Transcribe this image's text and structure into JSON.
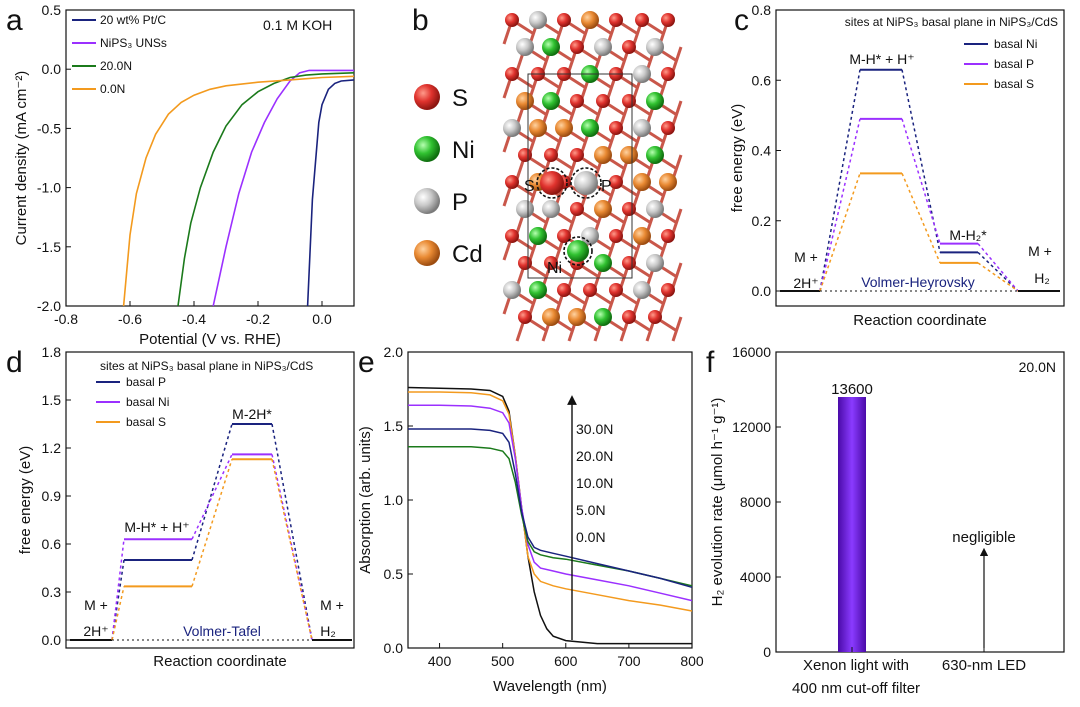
{
  "chart_data": [
    {
      "panel": "a",
      "type": "line",
      "title": "",
      "annotation": "0.1 M KOH",
      "xlabel": "Potential (V vs. RHE)",
      "ylabel": "Current density (mA cm⁻²)",
      "xlim": [
        -0.8,
        0.1
      ],
      "ylim": [
        -2.0,
        0.5
      ],
      "xticks": [
        "-0.8",
        "-0.6",
        "-0.4",
        "-0.2",
        "0.0"
      ],
      "yticks": [
        "-2.0",
        "-1.5",
        "-1.0",
        "-0.5",
        "0.0",
        "0.5"
      ],
      "legend": "top-left",
      "series": [
        {
          "name": "20 wt% Pt/C",
          "color": "#1a237e",
          "x": [
            -0.045,
            -0.03,
            -0.01,
            0.0,
            0.02,
            0.04,
            0.06,
            0.1
          ],
          "y": [
            -2.0,
            -1.1,
            -0.45,
            -0.3,
            -0.17,
            -0.12,
            -0.1,
            -0.09
          ]
        },
        {
          "name": "NiPS₃ UNSs",
          "color": "#9b30ff",
          "x": [
            -0.34,
            -0.32,
            -0.3,
            -0.26,
            -0.22,
            -0.18,
            -0.14,
            -0.1,
            -0.07,
            -0.04,
            0.0,
            0.1
          ],
          "y": [
            -2.0,
            -1.75,
            -1.5,
            -1.05,
            -0.7,
            -0.45,
            -0.25,
            -0.1,
            -0.03,
            -0.01,
            -0.01,
            -0.01
          ]
        },
        {
          "name": "20.0N",
          "color": "#1b7a1b",
          "x": [
            -0.45,
            -0.43,
            -0.41,
            -0.38,
            -0.34,
            -0.3,
            -0.25,
            -0.2,
            -0.15,
            -0.1,
            -0.05,
            0.0,
            0.1
          ],
          "y": [
            -2.0,
            -1.6,
            -1.3,
            -1.0,
            -0.7,
            -0.48,
            -0.3,
            -0.19,
            -0.12,
            -0.07,
            -0.05,
            -0.04,
            -0.03
          ]
        },
        {
          "name": "0.0N",
          "color": "#f39a1e",
          "x": [
            -0.62,
            -0.61,
            -0.6,
            -0.58,
            -0.55,
            -0.52,
            -0.48,
            -0.44,
            -0.4,
            -0.35,
            -0.3,
            -0.2,
            -0.1,
            0.0,
            0.1
          ],
          "y": [
            -2.0,
            -1.7,
            -1.4,
            -1.05,
            -0.75,
            -0.55,
            -0.38,
            -0.28,
            -0.22,
            -0.17,
            -0.14,
            -0.11,
            -0.09,
            -0.07,
            -0.06
          ]
        }
      ]
    },
    {
      "panel": "b",
      "type": "structure",
      "legend": [
        "S",
        "Ni",
        "P",
        "Cd"
      ],
      "colors": {
        "S": "#e0332e",
        "Ni": "#31c231",
        "P": "#bdbdbd",
        "Cd": "#e98a33"
      },
      "site_labels": [
        "S",
        "P",
        "Ni"
      ]
    },
    {
      "panel": "c",
      "type": "line",
      "title": "sites at NiPS₃ basal plane in NiPS₃/CdS",
      "xlabel": "Reaction coordinate",
      "ylabel": "free energy (eV)",
      "ylim": [
        -0.05,
        0.8
      ],
      "yticks": [
        "0.0",
        "0.2",
        "0.4",
        "0.6",
        "0.8"
      ],
      "legend": "top-right",
      "step_labels": [
        "M +",
        "2H⁺",
        "M-H* + H⁺",
        "M-H₂*",
        "M +",
        "H₂"
      ],
      "mechanism": "Volmer-Heyrovsky",
      "series": [
        {
          "name": "basal Ni",
          "color": "#1a237e",
          "values": [
            0.0,
            0.63,
            0.11,
            0.0
          ]
        },
        {
          "name": "basal P",
          "color": "#9b30ff",
          "values": [
            0.0,
            0.49,
            0.135,
            0.0
          ]
        },
        {
          "name": "basal S",
          "color": "#f39a1e",
          "values": [
            0.0,
            0.335,
            0.08,
            0.0
          ]
        }
      ]
    },
    {
      "panel": "d",
      "type": "line",
      "title": "sites at NiPS₃ basal plane in NiPS₃/CdS",
      "xlabel": "Reaction coordinate",
      "ylabel": "free energy (eV)",
      "ylim": [
        -0.05,
        1.8
      ],
      "yticks": [
        "0.0",
        "0.3",
        "0.6",
        "0.9",
        "1.2",
        "1.5",
        "1.8"
      ],
      "legend": "top-left",
      "step_labels": [
        "M +",
        "2H⁺",
        "M-H* + H⁺",
        "M-2H*",
        "M +",
        "H₂"
      ],
      "mechanism": "Volmer-Tafel",
      "series": [
        {
          "name": "basal P",
          "color": "#1a237e",
          "values": [
            0.0,
            0.5,
            1.35,
            0.0
          ]
        },
        {
          "name": "basal Ni",
          "color": "#9b30ff",
          "values": [
            0.0,
            0.63,
            1.16,
            0.0
          ]
        },
        {
          "name": "basal S",
          "color": "#f39a1e",
          "values": [
            0.0,
            0.335,
            1.13,
            0.0
          ]
        }
      ]
    },
    {
      "panel": "e",
      "type": "line",
      "xlabel": "Wavelength (nm)",
      "ylabel": "Absorption (arb. units)",
      "xlim": [
        350,
        800
      ],
      "ylim": [
        0.0,
        2.0
      ],
      "xticks": [
        "400",
        "500",
        "600",
        "700",
        "800"
      ],
      "yticks": [
        "0.0",
        "0.5",
        "1.0",
        "1.5",
        "2.0"
      ],
      "arrow_labels": [
        "30.0N",
        "20.0N",
        "10.0N",
        "5.0N",
        "0.0N"
      ],
      "series": [
        {
          "name": "0.0N",
          "color": "#111111",
          "x": [
            350,
            400,
            450,
            480,
            500,
            510,
            520,
            530,
            540,
            550,
            560,
            570,
            580,
            600,
            650,
            700,
            750,
            800
          ],
          "y": [
            1.76,
            1.755,
            1.75,
            1.74,
            1.7,
            1.6,
            1.3,
            0.95,
            0.62,
            0.38,
            0.22,
            0.13,
            0.08,
            0.05,
            0.03,
            0.03,
            0.03,
            0.03
          ]
        },
        {
          "name": "5.0N",
          "color": "#f39a1e",
          "x": [
            350,
            400,
            450,
            480,
            500,
            510,
            520,
            530,
            540,
            550,
            560,
            580,
            600,
            650,
            700,
            750,
            800
          ],
          "y": [
            1.73,
            1.73,
            1.725,
            1.71,
            1.67,
            1.58,
            1.3,
            0.95,
            0.62,
            0.5,
            0.45,
            0.42,
            0.4,
            0.36,
            0.32,
            0.29,
            0.25
          ]
        },
        {
          "name": "10.0N",
          "color": "#9b30ff",
          "x": [
            350,
            400,
            450,
            480,
            500,
            510,
            520,
            530,
            540,
            550,
            560,
            580,
            600,
            650,
            700,
            750,
            800
          ],
          "y": [
            1.64,
            1.64,
            1.635,
            1.62,
            1.59,
            1.52,
            1.28,
            0.95,
            0.7,
            0.58,
            0.54,
            0.52,
            0.5,
            0.46,
            0.42,
            0.37,
            0.32
          ]
        },
        {
          "name": "20.0N",
          "color": "#1b7a1b",
          "x": [
            350,
            400,
            450,
            480,
            500,
            510,
            520,
            530,
            540,
            550,
            560,
            580,
            600,
            650,
            700,
            750,
            800
          ],
          "y": [
            1.36,
            1.36,
            1.36,
            1.35,
            1.33,
            1.28,
            1.12,
            0.9,
            0.72,
            0.65,
            0.63,
            0.61,
            0.6,
            0.56,
            0.52,
            0.47,
            0.42
          ]
        },
        {
          "name": "30.0N",
          "color": "#1a237e",
          "x": [
            350,
            400,
            450,
            480,
            500,
            510,
            520,
            530,
            540,
            550,
            560,
            580,
            600,
            650,
            700,
            750,
            800
          ],
          "y": [
            1.48,
            1.48,
            1.48,
            1.47,
            1.45,
            1.39,
            1.18,
            0.92,
            0.75,
            0.68,
            0.66,
            0.64,
            0.62,
            0.57,
            0.52,
            0.47,
            0.41
          ]
        }
      ]
    },
    {
      "panel": "f",
      "type": "bar",
      "title": "",
      "annotation": "20.0N",
      "ylabel": "H₂ evolution rate (μmol h⁻¹ g⁻¹)",
      "ylim": [
        0,
        16000
      ],
      "yticks": [
        "0",
        "4000",
        "8000",
        "12000",
        "16000"
      ],
      "categories": [
        "Xenon light with 400 nm cut-off filter",
        "630-nm LED"
      ],
      "category_lines": [
        [
          "Xenon light with",
          "400 nm cut-off filter"
        ],
        [
          "630-nm LED"
        ]
      ],
      "values": [
        13600,
        0
      ],
      "value_labels": [
        "13600",
        "negligible"
      ],
      "bar_color": "#6a0fd6"
    }
  ]
}
